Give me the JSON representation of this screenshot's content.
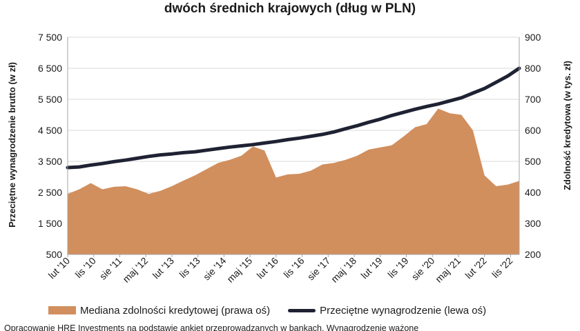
{
  "colors": {
    "area": "#d18f5e",
    "line": "#1f2233",
    "grid": "#d9d9d9",
    "axis": "#a6a6a6"
  },
  "legend": {
    "area_label": "Mediana zdolności kredytowej (prawa oś)",
    "line_label": "Przeciętne wynagrodzenie (lewa oś)"
  },
  "source_note": "Opracowanie HRE Investments na podstawie ankiet przeprowadzanych w bankach. Wynagrodzenie ważone",
  "chart_data": {
    "type": "area",
    "title": "dwóch średnich krajowych (dług w PLN)",
    "ylabel_left": "Przeciętne wynagrodzenie brutto (w zł)",
    "ylabel_right": "Zdolność kredytowa (w tys. zł)",
    "ylim_left": [
      500,
      7500
    ],
    "ylim_right": [
      200,
      900
    ],
    "y_ticks_left": [
      "500",
      "1 500",
      "2 500",
      "3 500",
      "4 500",
      "5 500",
      "6 500",
      "7 500"
    ],
    "y_ticks_right": [
      "200",
      "300",
      "400",
      "500",
      "600",
      "700",
      "800",
      "900"
    ],
    "x_ticks": [
      "lut '10",
      "lis '10",
      "sie '11",
      "maj '12",
      "lut '13",
      "lis '13",
      "sie '14",
      "maj '15",
      "lut '16",
      "lis '16",
      "sie '17",
      "maj '18",
      "lut '19",
      "lis '19",
      "sie '20",
      "maj '21",
      "lut '22",
      "lis '22"
    ],
    "grid": true,
    "legend_position": "bottom",
    "series": [
      {
        "name": "Mediana zdolności kredytowej (prawa oś)",
        "axis": "right",
        "type": "area",
        "x": [
          "2010-02",
          "2010-06",
          "2010-10",
          "2011-02",
          "2011-06",
          "2011-10",
          "2012-02",
          "2012-06",
          "2012-10",
          "2013-02",
          "2013-06",
          "2013-10",
          "2014-02",
          "2014-06",
          "2014-10",
          "2015-02",
          "2015-06",
          "2015-10",
          "2016-02",
          "2016-06",
          "2016-10",
          "2017-02",
          "2017-06",
          "2017-10",
          "2018-02",
          "2018-06",
          "2018-10",
          "2019-02",
          "2019-06",
          "2019-10",
          "2020-02",
          "2020-06",
          "2020-10",
          "2021-02",
          "2021-06",
          "2021-10",
          "2022-02",
          "2022-06",
          "2022-10",
          "2023-02"
        ],
        "values": [
          395,
          410,
          430,
          410,
          418,
          420,
          410,
          395,
          405,
          420,
          438,
          455,
          475,
          495,
          505,
          518,
          548,
          535,
          448,
          458,
          460,
          470,
          490,
          495,
          505,
          518,
          538,
          545,
          552,
          580,
          610,
          620,
          670,
          655,
          650,
          600,
          455,
          420,
          425,
          437
        ]
      },
      {
        "name": "Przeciętne wynagrodzenie (lewa oś)",
        "axis": "left",
        "type": "line",
        "x": [
          "2010-02",
          "2010-06",
          "2010-10",
          "2011-02",
          "2011-06",
          "2011-10",
          "2012-02",
          "2012-06",
          "2012-10",
          "2013-02",
          "2013-06",
          "2013-10",
          "2014-02",
          "2014-06",
          "2014-10",
          "2015-02",
          "2015-06",
          "2015-10",
          "2016-02",
          "2016-06",
          "2016-10",
          "2017-02",
          "2017-06",
          "2017-10",
          "2018-02",
          "2018-06",
          "2018-10",
          "2019-02",
          "2019-06",
          "2019-10",
          "2020-02",
          "2020-06",
          "2020-10",
          "2021-02",
          "2021-06",
          "2021-10",
          "2022-02",
          "2022-06",
          "2022-10",
          "2023-02"
        ],
        "values": [
          3300,
          3320,
          3380,
          3430,
          3490,
          3540,
          3600,
          3660,
          3710,
          3740,
          3780,
          3810,
          3860,
          3910,
          3960,
          4000,
          4040,
          4090,
          4140,
          4200,
          4250,
          4310,
          4370,
          4450,
          4550,
          4650,
          4760,
          4860,
          4980,
          5080,
          5180,
          5270,
          5350,
          5450,
          5550,
          5700,
          5850,
          6050,
          6250,
          6500
        ]
      }
    ]
  }
}
